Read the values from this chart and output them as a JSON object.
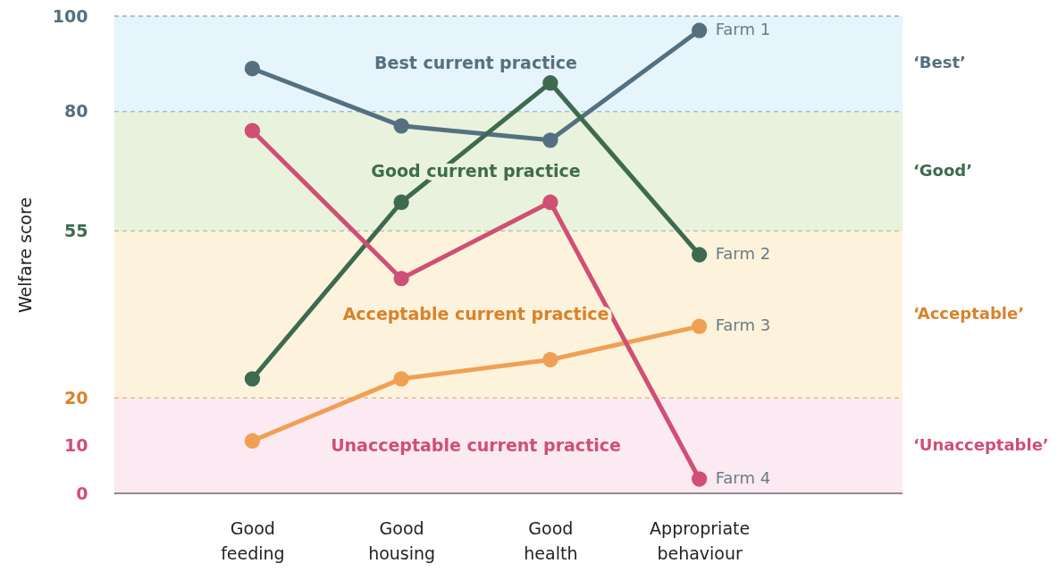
{
  "chart_data": {
    "type": "line",
    "ylabel": "Welfare score",
    "categories": [
      "Good feeding",
      "Good housing",
      "Good health",
      "Appropriate behaviour"
    ],
    "series": [
      {
        "name": "Farm 1",
        "color": "#557080",
        "values": [
          89,
          77,
          74,
          97
        ]
      },
      {
        "name": "Farm 2",
        "color": "#3e6b50",
        "values": [
          24,
          61,
          86,
          50
        ]
      },
      {
        "name": "Farm 3",
        "color": "#f0a055",
        "values": [
          11,
          24,
          28,
          35
        ]
      },
      {
        "name": "Farm 4",
        "color": "#d04f74",
        "values": [
          76,
          45,
          61,
          3
        ]
      }
    ],
    "ylim": [
      0,
      100
    ],
    "yticks": [
      0,
      10,
      20,
      55,
      80,
      100
    ],
    "bands": [
      {
        "axis": "y",
        "from": 0,
        "to": 20,
        "label": "Unacceptable current practice",
        "color": "#fbeaf1"
      },
      {
        "axis": "y",
        "from": 20,
        "to": 55,
        "label": "Acceptable current practice",
        "color": "#fdf3dc"
      },
      {
        "axis": "y",
        "from": 55,
        "to": 80,
        "label": "Good current practice",
        "color": "#e8f2dd"
      },
      {
        "axis": "y",
        "from": 80,
        "to": 100,
        "label": "Best current practice",
        "color": "#e6f4fc"
      }
    ],
    "ref_lines": [
      {
        "axis": "y",
        "value": 20,
        "color": "#d9a060",
        "line_style": "dashed"
      },
      {
        "axis": "y",
        "value": 55,
        "color": "#9bb88a",
        "line_style": "dashed"
      },
      {
        "axis": "y",
        "value": 80,
        "color": "#7aaac4",
        "line_style": "dashed"
      },
      {
        "axis": "y",
        "value": 100,
        "color": "#6a8898",
        "line_style": "dashed"
      }
    ],
    "annotations": [
      "‘Unacceptable’",
      "‘Acceptable’",
      "‘Good’",
      "‘Best’"
    ],
    "marker": "circle",
    "line_style": "solid",
    "legend": false,
    "grid": false
  }
}
